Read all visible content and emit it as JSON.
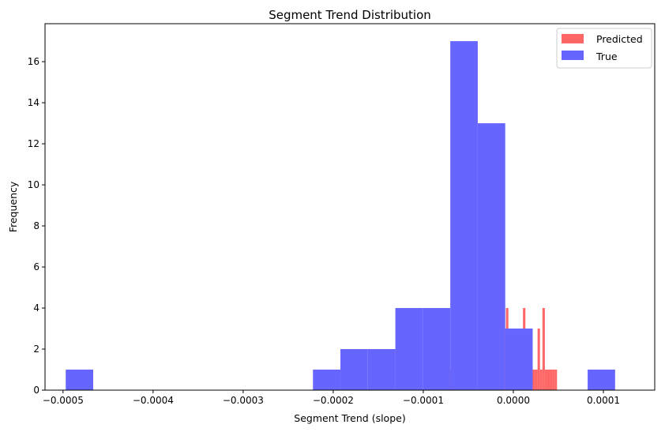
{
  "chart_data": {
    "type": "histogram",
    "title": "Segment Trend Distribution",
    "xlabel": "Segment Trend (slope)",
    "ylabel": "Frequency",
    "xlim": [
      -0.00052,
      0.000157
    ],
    "ylim": [
      0,
      17.85
    ],
    "x_ticks": [
      -0.0005,
      -0.0004,
      -0.0003,
      -0.0002,
      -0.0001,
      0.0,
      0.0001
    ],
    "x_tick_labels": [
      "−0.0005",
      "−0.0004",
      "−0.0003",
      "−0.0002",
      "−0.0001",
      "0.0000",
      "0.0001"
    ],
    "y_ticks": [
      0,
      2,
      4,
      6,
      8,
      10,
      12,
      14,
      16
    ],
    "y_tick_labels": [
      "0",
      "2",
      "4",
      "6",
      "8",
      "10",
      "12",
      "14",
      "16"
    ],
    "legend_position": "top-right",
    "series": [
      {
        "name": "Predicted",
        "color": "#ff6666",
        "bin_edges": [
          -0.0001,
          -9.73e-05,
          -9.46e-05,
          -9.19e-05,
          -8.92e-05,
          -8.65e-05,
          -8.38e-05,
          -8.11e-05,
          -7.84e-05,
          -7.57e-05,
          -7.3e-05,
          -7.03e-05,
          -6.76e-05,
          -6.49e-05,
          -6.22e-05,
          -5.95e-05,
          -5.68e-05,
          -5.41e-05,
          -5.14e-05,
          -4.87e-05,
          -4.6e-05,
          -4.33e-05,
          -4.06e-05,
          -3.79e-05,
          -3.52e-05,
          -3.25e-05,
          -2.98e-05,
          -2.71e-05,
          -2.44e-05,
          -2.17e-05,
          -1.9e-05,
          -1.63e-05,
          -1.36e-05,
          -1.09e-05,
          -8.2e-06,
          -5.5e-06,
          -2.8e-06,
          -1e-07,
          2.6e-06,
          5.3e-06,
          8e-06,
          1.07e-05,
          1.34e-05,
          1.61e-05,
          1.88e-05,
          2.15e-05,
          2.42e-05,
          2.69e-05,
          2.96e-05,
          3.23e-05,
          3.5e-05,
          3.77e-05,
          4.04e-05,
          4.31e-05,
          4.58e-05,
          4.85e-05
        ],
        "counts": [
          3,
          0,
          0,
          0,
          0,
          0,
          1,
          0,
          0,
          1,
          1,
          1,
          1,
          0,
          2,
          0,
          0,
          0,
          0,
          0,
          0,
          0,
          0,
          0,
          3,
          1,
          0,
          2,
          5,
          5,
          5,
          3,
          8,
          3,
          4,
          3,
          3,
          2,
          2,
          1,
          1,
          4,
          3,
          1,
          1,
          1,
          1,
          3,
          1,
          4,
          1,
          1,
          1,
          1,
          1
        ]
      },
      {
        "name": "True",
        "color": "#6666ff",
        "bin_edges": [
          -0.000497,
          -0.0004665,
          -0.000436,
          -0.0004055,
          -0.000375,
          -0.0003445,
          -0.000314,
          -0.0002835,
          -0.000253,
          -0.0002225,
          -0.000192,
          -0.0001615,
          -0.000131,
          -0.0001005,
          -7e-05,
          -3.95e-05,
          -9e-06,
          2.15e-05,
          5.2e-05,
          8.25e-05,
          0.000113,
          0.0001435
        ],
        "counts": [
          1,
          0,
          0,
          0,
          0,
          0,
          0,
          0,
          0,
          1,
          2,
          2,
          4,
          4,
          17,
          13,
          3,
          0,
          0,
          1,
          0
        ]
      }
    ]
  }
}
